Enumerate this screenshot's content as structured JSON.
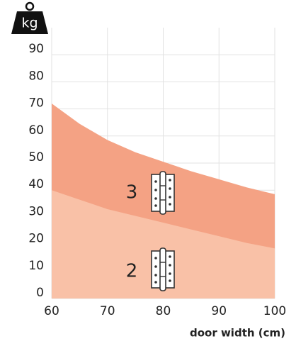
{
  "chart_data": {
    "type": "area",
    "icon_label": "kg",
    "xlabel": "door width (cm)",
    "x": [
      60,
      65,
      70,
      75,
      80,
      85,
      90,
      95,
      100
    ],
    "series": [
      {
        "name": "3",
        "color": "#f4a284",
        "values": [
          72,
          64.5,
          58.5,
          54,
          50.5,
          47,
          44,
          41,
          38.5
        ]
      },
      {
        "name": "2",
        "color": "#f9c1a7",
        "values": [
          40,
          36.5,
          33,
          30.5,
          28,
          25.5,
          23,
          20.5,
          18.5
        ]
      }
    ],
    "xlim": [
      60,
      100
    ],
    "xticks": [
      60,
      70,
      80,
      90,
      100
    ],
    "ylim": [
      0,
      100
    ],
    "yticks": [
      0,
      10,
      20,
      30,
      40,
      50,
      60,
      70,
      80,
      90
    ],
    "grid": true
  }
}
